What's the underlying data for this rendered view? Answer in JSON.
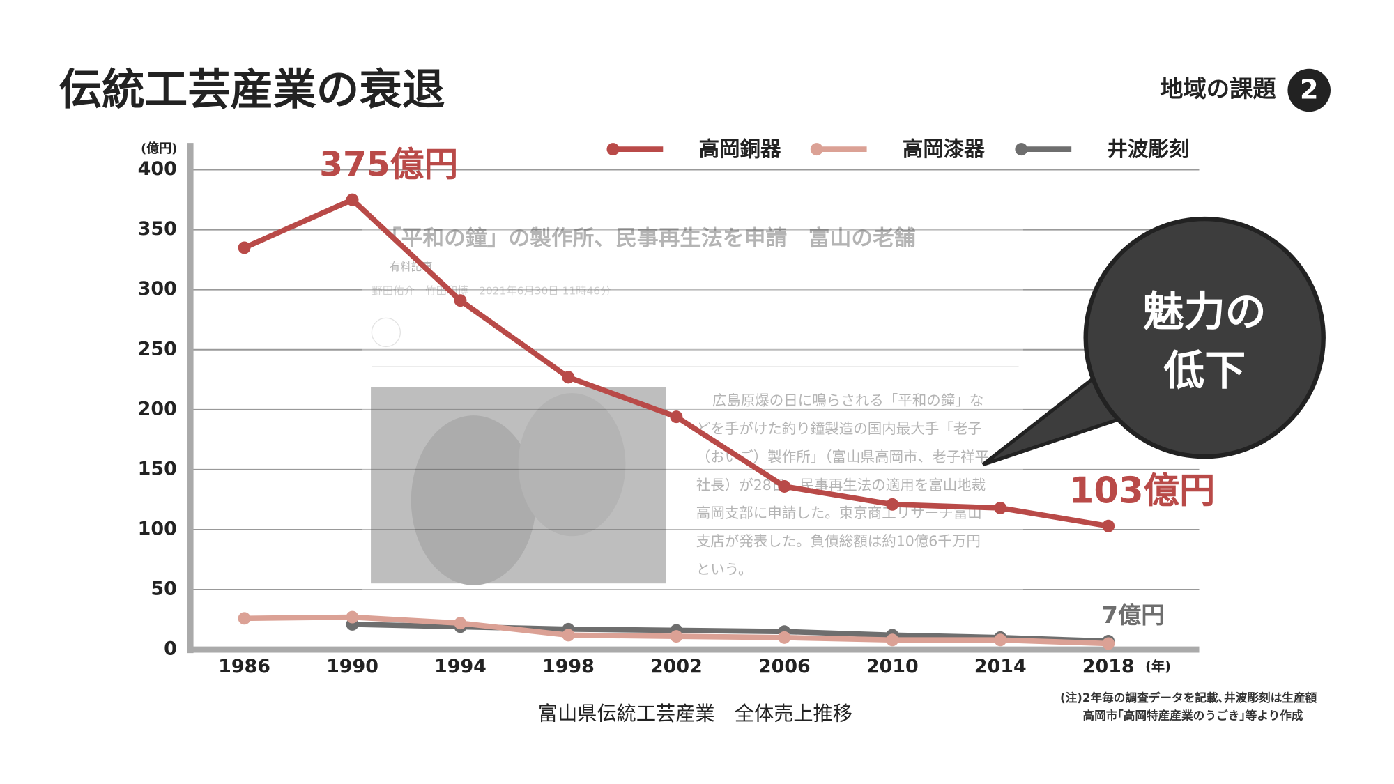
{
  "slide": {
    "title": "伝統工芸産業の衰退",
    "section": "地域の課題",
    "section_number": "2",
    "caption": "富山県伝統工芸産業　全体売上推移",
    "notes": [
      "(注)2年毎の調査データを記載､井波彫刻は生産額",
      "高岡市｢高岡特産産業のうごき｣等より作成"
    ],
    "bubble": [
      "魅力の",
      "低下"
    ]
  },
  "article": {
    "headline": "「平和の鐘」の製作所、民事再生法を申請　富山の老舗",
    "tag": "有料記事",
    "byline": "野田佑介　竹田和博　2021年6月30日 11時46分",
    "body": [
      "広島原爆の日に鳴らされる「平和の鐘」な",
      "どを手がけた釣り鐘製造の国内最大手「老子",
      "（おいご）製作所」（富山県高岡市、老子祥平",
      "社長）が28日、民事再生法の適用を富山地裁",
      "高岡支部に申請した。東京商工リサーチ富山",
      "支店が発表した。負債総額は約10億6千万円",
      "という。"
    ]
  },
  "chart_data": {
    "type": "line",
    "y_label": "(億円)",
    "x_label": "(年)",
    "x": [
      1986,
      1990,
      1994,
      1998,
      2002,
      2006,
      2010,
      2014,
      2018
    ],
    "xlim": [
      1984,
      2021
    ],
    "xticks": [
      1986,
      1990,
      1994,
      1998,
      2002,
      2006,
      2010,
      2014,
      2018
    ],
    "ylim": [
      0,
      400
    ],
    "yticks": [
      0,
      50,
      100,
      150,
      200,
      250,
      300,
      350,
      400
    ],
    "grid": true,
    "series": [
      {
        "name": "高岡銅器",
        "color": "#b94a48",
        "values": [
          335,
          375,
          291,
          227,
          194,
          136,
          121,
          118,
          103
        ],
        "value_labels": [
          null,
          "375億円",
          null,
          null,
          null,
          null,
          null,
          null,
          "103億円"
        ]
      },
      {
        "name": "高岡漆器",
        "color": "#dba195",
        "values": [
          26,
          27,
          22,
          12,
          11,
          10,
          8,
          8,
          5
        ]
      },
      {
        "name": "井波彫刻",
        "color": "#6e6e6e",
        "values": [
          null,
          21,
          19,
          17,
          16,
          15,
          12,
          10,
          7
        ],
        "value_labels": [
          null,
          null,
          null,
          null,
          null,
          null,
          null,
          null,
          "7億円"
        ]
      }
    ]
  }
}
